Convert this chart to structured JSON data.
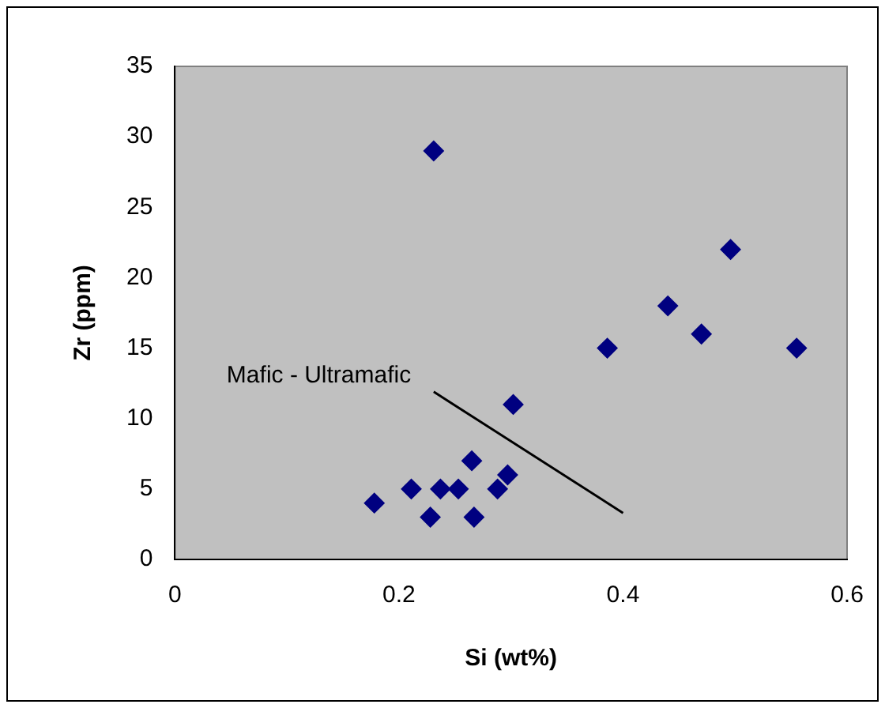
{
  "chart_data": {
    "type": "scatter",
    "xlabel": "Si (wt%)",
    "ylabel": "Zr (ppm)",
    "xlim": [
      0,
      0.6
    ],
    "xticks": [
      0,
      0.2,
      0.4,
      0.6
    ],
    "ylim": [
      0,
      35
    ],
    "yticks": [
      0,
      5,
      10,
      15,
      20,
      25,
      30,
      35
    ],
    "grid": false,
    "legend": false,
    "marker": "diamond",
    "series": [
      {
        "color": "#000080",
        "x": [
          0.178,
          0.211,
          0.228,
          0.237,
          0.253,
          0.265,
          0.267,
          0.288,
          0.297,
          0.302,
          0.386,
          0.44,
          0.47,
          0.496,
          0.555,
          0.231
        ],
        "values": [
          4,
          5,
          3,
          5,
          5,
          7,
          3,
          5,
          6,
          11,
          15,
          18,
          16,
          22,
          15,
          29
        ]
      },
      {
        "type": "line",
        "color": "#000000",
        "marker": "none",
        "x": [
          0.231,
          0.4
        ],
        "values": [
          11.9,
          3.3
        ]
      }
    ],
    "annotations": [
      "Mafic - Ultramafic"
    ]
  }
}
